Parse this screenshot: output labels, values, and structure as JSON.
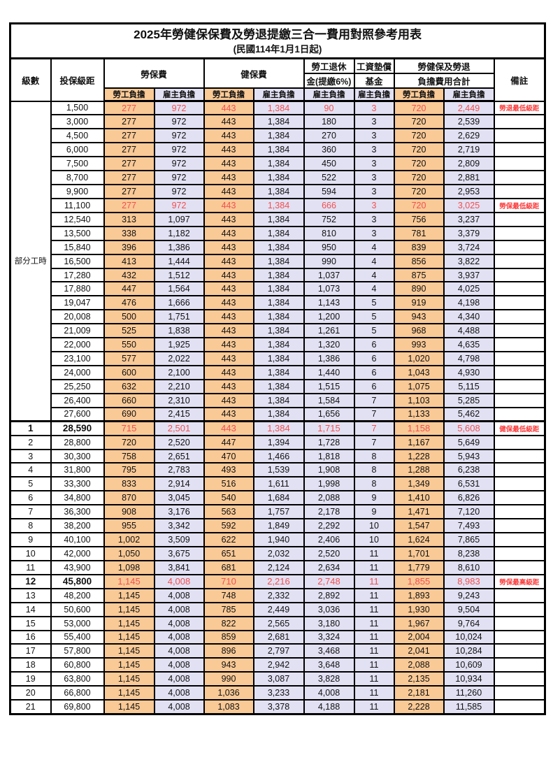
{
  "title": "2025年勞健保保費及勞退提繳三合一費用對照參考用表",
  "subtitle": "(民國114年1月1日起)",
  "colors": {
    "worker_bg": "#F9C996",
    "employer_bg": "#E2E1F3",
    "value_red": "#F25050",
    "note_red": "#FB3B3B"
  },
  "headers": {
    "grade": "級數",
    "bracket": "投保級距",
    "labor_insurance": "勞保費",
    "health_insurance": "健保費",
    "pension_line1": "勞工退休",
    "pension_line2": "金(提繳6%)",
    "wage_fund_line1": "工資墊償",
    "wage_fund_line2": "基金",
    "total_line1": "勞健保及勞退",
    "total_line2": "負擔費用合計",
    "remark": "備註",
    "worker": "勞工負擔",
    "employer": "雇主負擔"
  },
  "table": {
    "part_time": {
      "label": "部分工時",
      "rowspan": 23
    },
    "rows": [
      {
        "grade": "",
        "bracket": "1,500",
        "values": [
          "277",
          "972",
          "443",
          "1,384",
          "90",
          "3",
          "720",
          "2,449"
        ],
        "note": "勞退最低級距",
        "red": true,
        "em": false
      },
      {
        "grade": "",
        "bracket": "3,000",
        "values": [
          "277",
          "972",
          "443",
          "1,384",
          "180",
          "3",
          "720",
          "2,539"
        ],
        "note": "",
        "red": false,
        "em": false
      },
      {
        "grade": "",
        "bracket": "4,500",
        "values": [
          "277",
          "972",
          "443",
          "1,384",
          "270",
          "3",
          "720",
          "2,629"
        ],
        "note": "",
        "red": false,
        "em": false
      },
      {
        "grade": "",
        "bracket": "6,000",
        "values": [
          "277",
          "972",
          "443",
          "1,384",
          "360",
          "3",
          "720",
          "2,719"
        ],
        "note": "",
        "red": false,
        "em": false
      },
      {
        "grade": "",
        "bracket": "7,500",
        "values": [
          "277",
          "972",
          "443",
          "1,384",
          "450",
          "3",
          "720",
          "2,809"
        ],
        "note": "",
        "red": false,
        "em": false
      },
      {
        "grade": "",
        "bracket": "8,700",
        "values": [
          "277",
          "972",
          "443",
          "1,384",
          "522",
          "3",
          "720",
          "2,881"
        ],
        "note": "",
        "red": false,
        "em": false
      },
      {
        "grade": "",
        "bracket": "9,900",
        "values": [
          "277",
          "972",
          "443",
          "1,384",
          "594",
          "3",
          "720",
          "2,953"
        ],
        "note": "",
        "red": false,
        "em": false
      },
      {
        "grade": "",
        "bracket": "11,100",
        "values": [
          "277",
          "972",
          "443",
          "1,384",
          "666",
          "3",
          "720",
          "3,025"
        ],
        "note": "勞保最低級距",
        "red": true,
        "em": false
      },
      {
        "grade": "",
        "bracket": "12,540",
        "values": [
          "313",
          "1,097",
          "443",
          "1,384",
          "752",
          "3",
          "756",
          "3,237"
        ],
        "note": "",
        "red": false,
        "em": false
      },
      {
        "grade": "",
        "bracket": "13,500",
        "values": [
          "338",
          "1,182",
          "443",
          "1,384",
          "810",
          "3",
          "781",
          "3,379"
        ],
        "note": "",
        "red": false,
        "em": false
      },
      {
        "grade": "",
        "bracket": "15,840",
        "values": [
          "396",
          "1,386",
          "443",
          "1,384",
          "950",
          "4",
          "839",
          "3,724"
        ],
        "note": "",
        "red": false,
        "em": false
      },
      {
        "grade": "",
        "bracket": "16,500",
        "values": [
          "413",
          "1,444",
          "443",
          "1,384",
          "990",
          "4",
          "856",
          "3,822"
        ],
        "note": "",
        "red": false,
        "em": false
      },
      {
        "grade": "",
        "bracket": "17,280",
        "values": [
          "432",
          "1,512",
          "443",
          "1,384",
          "1,037",
          "4",
          "875",
          "3,937"
        ],
        "note": "",
        "red": false,
        "em": false
      },
      {
        "grade": "",
        "bracket": "17,880",
        "values": [
          "447",
          "1,564",
          "443",
          "1,384",
          "1,073",
          "4",
          "890",
          "4,025"
        ],
        "note": "",
        "red": false,
        "em": false
      },
      {
        "grade": "",
        "bracket": "19,047",
        "values": [
          "476",
          "1,666",
          "443",
          "1,384",
          "1,143",
          "5",
          "919",
          "4,198"
        ],
        "note": "",
        "red": false,
        "em": false
      },
      {
        "grade": "",
        "bracket": "20,008",
        "values": [
          "500",
          "1,751",
          "443",
          "1,384",
          "1,200",
          "5",
          "943",
          "4,340"
        ],
        "note": "",
        "red": false,
        "em": false
      },
      {
        "grade": "",
        "bracket": "21,009",
        "values": [
          "525",
          "1,838",
          "443",
          "1,384",
          "1,261",
          "5",
          "968",
          "4,488"
        ],
        "note": "",
        "red": false,
        "em": false
      },
      {
        "grade": "",
        "bracket": "22,000",
        "values": [
          "550",
          "1,925",
          "443",
          "1,384",
          "1,320",
          "6",
          "993",
          "4,635"
        ],
        "note": "",
        "red": false,
        "em": false
      },
      {
        "grade": "",
        "bracket": "23,100",
        "values": [
          "577",
          "2,022",
          "443",
          "1,384",
          "1,386",
          "6",
          "1,020",
          "4,798"
        ],
        "note": "",
        "red": false,
        "em": false
      },
      {
        "grade": "",
        "bracket": "24,000",
        "values": [
          "600",
          "2,100",
          "443",
          "1,384",
          "1,440",
          "6",
          "1,043",
          "4,930"
        ],
        "note": "",
        "red": false,
        "em": false
      },
      {
        "grade": "",
        "bracket": "25,250",
        "values": [
          "632",
          "2,210",
          "443",
          "1,384",
          "1,515",
          "6",
          "1,075",
          "5,115"
        ],
        "note": "",
        "red": false,
        "em": false
      },
      {
        "grade": "",
        "bracket": "26,400",
        "values": [
          "660",
          "2,310",
          "443",
          "1,384",
          "1,584",
          "7",
          "1,103",
          "5,285"
        ],
        "note": "",
        "red": false,
        "em": false
      },
      {
        "grade": "",
        "bracket": "27,600",
        "values": [
          "690",
          "2,415",
          "443",
          "1,384",
          "1,656",
          "7",
          "1,133",
          "5,462"
        ],
        "note": "",
        "red": false,
        "em": false
      },
      {
        "grade": "1",
        "bracket": "28,590",
        "values": [
          "715",
          "2,501",
          "443",
          "1,384",
          "1,715",
          "7",
          "1,158",
          "5,608"
        ],
        "note": "健保最低級距",
        "red": true,
        "em": true
      },
      {
        "grade": "2",
        "bracket": "28,800",
        "values": [
          "720",
          "2,520",
          "447",
          "1,394",
          "1,728",
          "7",
          "1,167",
          "5,649"
        ],
        "note": "",
        "red": false,
        "em": false
      },
      {
        "grade": "3",
        "bracket": "30,300",
        "values": [
          "758",
          "2,651",
          "470",
          "1,466",
          "1,818",
          "8",
          "1,228",
          "5,943"
        ],
        "note": "",
        "red": false,
        "em": false
      },
      {
        "grade": "4",
        "bracket": "31,800",
        "values": [
          "795",
          "2,783",
          "493",
          "1,539",
          "1,908",
          "8",
          "1,288",
          "6,238"
        ],
        "note": "",
        "red": false,
        "em": false
      },
      {
        "grade": "5",
        "bracket": "33,300",
        "values": [
          "833",
          "2,914",
          "516",
          "1,611",
          "1,998",
          "8",
          "1,349",
          "6,531"
        ],
        "note": "",
        "red": false,
        "em": false
      },
      {
        "grade": "6",
        "bracket": "34,800",
        "values": [
          "870",
          "3,045",
          "540",
          "1,684",
          "2,088",
          "9",
          "1,410",
          "6,826"
        ],
        "note": "",
        "red": false,
        "em": false
      },
      {
        "grade": "7",
        "bracket": "36,300",
        "values": [
          "908",
          "3,176",
          "563",
          "1,757",
          "2,178",
          "9",
          "1,471",
          "7,120"
        ],
        "note": "",
        "red": false,
        "em": false
      },
      {
        "grade": "8",
        "bracket": "38,200",
        "values": [
          "955",
          "3,342",
          "592",
          "1,849",
          "2,292",
          "10",
          "1,547",
          "7,493"
        ],
        "note": "",
        "red": false,
        "em": false
      },
      {
        "grade": "9",
        "bracket": "40,100",
        "values": [
          "1,002",
          "3,509",
          "622",
          "1,940",
          "2,406",
          "10",
          "1,624",
          "7,865"
        ],
        "note": "",
        "red": false,
        "em": false
      },
      {
        "grade": "10",
        "bracket": "42,000",
        "values": [
          "1,050",
          "3,675",
          "651",
          "2,032",
          "2,520",
          "11",
          "1,701",
          "8,238"
        ],
        "note": "",
        "red": false,
        "em": false
      },
      {
        "grade": "11",
        "bracket": "43,900",
        "values": [
          "1,098",
          "3,841",
          "681",
          "2,124",
          "2,634",
          "11",
          "1,779",
          "8,610"
        ],
        "note": "",
        "red": false,
        "em": false
      },
      {
        "grade": "12",
        "bracket": "45,800",
        "values": [
          "1,145",
          "4,008",
          "710",
          "2,216",
          "2,748",
          "11",
          "1,855",
          "8,983"
        ],
        "note": "勞保最高級距",
        "red": true,
        "em": true
      },
      {
        "grade": "13",
        "bracket": "48,200",
        "values": [
          "1,145",
          "4,008",
          "748",
          "2,332",
          "2,892",
          "11",
          "1,893",
          "9,243"
        ],
        "note": "",
        "red": false,
        "em": false
      },
      {
        "grade": "14",
        "bracket": "50,600",
        "values": [
          "1,145",
          "4,008",
          "785",
          "2,449",
          "3,036",
          "11",
          "1,930",
          "9,504"
        ],
        "note": "",
        "red": false,
        "em": false
      },
      {
        "grade": "15",
        "bracket": "53,000",
        "values": [
          "1,145",
          "4,008",
          "822",
          "2,565",
          "3,180",
          "11",
          "1,967",
          "9,764"
        ],
        "note": "",
        "red": false,
        "em": false
      },
      {
        "grade": "16",
        "bracket": "55,400",
        "values": [
          "1,145",
          "4,008",
          "859",
          "2,681",
          "3,324",
          "11",
          "2,004",
          "10,024"
        ],
        "note": "",
        "red": false,
        "em": false
      },
      {
        "grade": "17",
        "bracket": "57,800",
        "values": [
          "1,145",
          "4,008",
          "896",
          "2,797",
          "3,468",
          "11",
          "2,041",
          "10,284"
        ],
        "note": "",
        "red": false,
        "em": false
      },
      {
        "grade": "18",
        "bracket": "60,800",
        "values": [
          "1,145",
          "4,008",
          "943",
          "2,942",
          "3,648",
          "11",
          "2,088",
          "10,609"
        ],
        "note": "",
        "red": false,
        "em": false
      },
      {
        "grade": "19",
        "bracket": "63,800",
        "values": [
          "1,145",
          "4,008",
          "990",
          "3,087",
          "3,828",
          "11",
          "2,135",
          "10,934"
        ],
        "note": "",
        "red": false,
        "em": false
      },
      {
        "grade": "20",
        "bracket": "66,800",
        "values": [
          "1,145",
          "4,008",
          "1,036",
          "3,233",
          "4,008",
          "11",
          "2,181",
          "11,260"
        ],
        "note": "",
        "red": false,
        "em": false
      },
      {
        "grade": "21",
        "bracket": "69,800",
        "values": [
          "1,145",
          "4,008",
          "1,083",
          "3,378",
          "4,188",
          "11",
          "2,228",
          "11,585"
        ],
        "note": "",
        "red": false,
        "em": false
      }
    ]
  }
}
